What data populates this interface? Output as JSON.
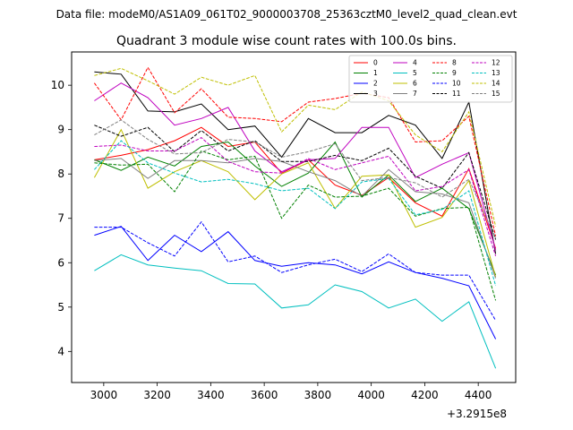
{
  "chart_data": {
    "type": "line",
    "suptitle": "Data file: modeM0/AS1A09_061T02_9000003708_25363cztM0_level2_quad_clean.evt",
    "title": "Quadrant 3 module wise count rates with 100.0s bins.",
    "xlabel": "",
    "ylabel": "",
    "x_offset_label": "+3.2915e8",
    "xlim": [
      2880,
      4540
    ],
    "ylim": [
      3.3,
      10.75
    ],
    "x_ticks": [
      3000,
      3200,
      3400,
      3600,
      3800,
      4000,
      4200,
      4400
    ],
    "y_ticks": [
      4,
      5,
      6,
      7,
      8,
      9,
      10
    ],
    "grid": false,
    "legend_location": "upper-right",
    "legend_columns": 4,
    "x": [
      2965,
      3065,
      3165,
      3265,
      3365,
      3465,
      3565,
      3665,
      3765,
      3865,
      3965,
      4065,
      4165,
      4265,
      4365,
      4465
    ],
    "series": [
      {
        "name": "0",
        "color": "#ff0000",
        "dash": "solid",
        "values": [
          8.32,
          8.42,
          8.55,
          8.75,
          9.05,
          8.62,
          8.72,
          8.02,
          8.32,
          7.75,
          7.52,
          7.92,
          7.35,
          7.05,
          8.12,
          6.32
        ]
      },
      {
        "name": "1",
        "color": "#008000",
        "dash": "solid",
        "values": [
          8.32,
          8.08,
          8.38,
          8.18,
          8.62,
          8.72,
          8.18,
          7.72,
          8.02,
          8.72,
          7.48,
          7.98,
          7.38,
          7.68,
          7.22,
          5.72
        ]
      },
      {
        "name": "2",
        "color": "#0000ff",
        "dash": "solid",
        "values": [
          6.62,
          6.82,
          6.05,
          6.62,
          6.25,
          6.7,
          6.05,
          5.92,
          6.0,
          5.95,
          5.75,
          6.02,
          5.78,
          5.65,
          5.48,
          4.28
        ]
      },
      {
        "name": "3",
        "color": "#000000",
        "dash": "solid",
        "values": [
          10.3,
          10.25,
          9.42,
          9.4,
          9.58,
          9.0,
          9.08,
          8.38,
          9.25,
          8.93,
          8.93,
          9.32,
          9.1,
          8.35,
          9.62,
          6.2
        ]
      },
      {
        "name": "4",
        "color": "#bf00bf",
        "dash": "solid",
        "values": [
          9.65,
          10.05,
          9.72,
          9.1,
          9.25,
          9.5,
          8.52,
          8.05,
          8.32,
          8.35,
          9.05,
          9.05,
          7.92,
          8.22,
          8.48,
          6.28
        ]
      },
      {
        "name": "5",
        "color": "#00bfbf",
        "dash": "solid",
        "values": [
          5.82,
          6.18,
          5.95,
          5.88,
          5.82,
          5.53,
          5.52,
          4.98,
          5.05,
          5.5,
          5.35,
          4.98,
          5.18,
          4.68,
          5.12,
          3.62
        ]
      },
      {
        "name": "6",
        "color": "#bfbf00",
        "dash": "solid",
        "values": [
          7.92,
          9.0,
          7.68,
          8.05,
          8.3,
          8.05,
          7.42,
          8.0,
          8.25,
          7.22,
          7.95,
          7.98,
          6.8,
          7.02,
          7.85,
          5.68
        ]
      },
      {
        "name": "7",
        "color": "#808080",
        "dash": "solid",
        "values": [
          8.3,
          8.35,
          7.9,
          8.3,
          8.3,
          8.25,
          8.35,
          8.28,
          8.05,
          7.85,
          7.5,
          8.1,
          7.6,
          7.55,
          7.35,
          5.65
        ]
      },
      {
        "name": "8",
        "color": "#ff0000",
        "dash": "dashed",
        "values": [
          10.05,
          9.22,
          10.4,
          9.38,
          9.92,
          9.28,
          9.25,
          9.18,
          9.62,
          9.7,
          9.82,
          9.72,
          8.72,
          8.75,
          9.3,
          6.6
        ]
      },
      {
        "name": "9",
        "color": "#008000",
        "dash": "dashed",
        "values": [
          8.25,
          8.2,
          8.22,
          7.6,
          8.52,
          8.32,
          8.4,
          7.0,
          7.75,
          7.48,
          7.5,
          7.68,
          7.05,
          7.22,
          7.25,
          5.15
        ]
      },
      {
        "name": "10",
        "color": "#0000ff",
        "dash": "dashed",
        "values": [
          6.8,
          6.8,
          6.45,
          6.15,
          6.92,
          6.02,
          6.15,
          5.78,
          5.95,
          6.08,
          5.8,
          6.2,
          5.78,
          5.72,
          5.72,
          4.7
        ]
      },
      {
        "name": "11",
        "color": "#000000",
        "dash": "dashed",
        "values": [
          9.1,
          8.85,
          9.05,
          8.5,
          8.98,
          8.52,
          8.75,
          8.28,
          8.28,
          8.42,
          8.3,
          8.58,
          7.95,
          7.68,
          8.48,
          6.52
        ]
      },
      {
        "name": "12",
        "color": "#bf00bf",
        "dash": "dashed",
        "values": [
          8.62,
          8.65,
          8.52,
          8.52,
          8.82,
          8.28,
          8.05,
          8.02,
          8.35,
          8.1,
          8.25,
          8.4,
          7.62,
          7.72,
          8.1,
          6.15
        ]
      },
      {
        "name": "13",
        "color": "#00bfbf",
        "dash": "dashed",
        "values": [
          8.1,
          8.75,
          8.25,
          8.02,
          7.82,
          7.88,
          7.78,
          7.62,
          7.68,
          7.22,
          7.82,
          7.9,
          7.08,
          7.2,
          7.62,
          5.48
        ]
      },
      {
        "name": "14",
        "color": "#bfbf00",
        "dash": "dashed",
        "values": [
          10.22,
          10.38,
          10.1,
          9.8,
          10.18,
          10.0,
          10.22,
          8.95,
          9.55,
          9.45,
          9.85,
          9.65,
          8.88,
          8.5,
          9.4,
          6.82
        ]
      },
      {
        "name": "15",
        "color": "#808080",
        "dash": "dashed",
        "values": [
          8.88,
          9.22,
          8.78,
          8.45,
          8.48,
          8.78,
          8.72,
          8.38,
          8.5,
          8.68,
          7.85,
          7.92,
          7.8,
          7.48,
          7.88,
          6.55
        ]
      }
    ]
  }
}
